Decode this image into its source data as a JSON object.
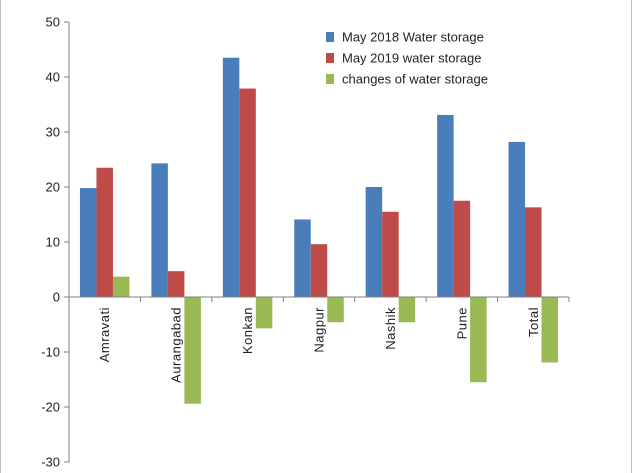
{
  "chart_data": {
    "type": "bar",
    "title": "",
    "xlabel": "",
    "ylabel": "",
    "ylim": [
      -30,
      50
    ],
    "yticks": [
      50,
      40,
      30,
      20,
      10,
      0,
      -10,
      -20,
      -30
    ],
    "grid": false,
    "legend_position": "top-right",
    "categories": [
      "Amravati",
      "Aurangabad",
      "Konkan",
      "Nagpur",
      "Nashik",
      "Pune",
      "Total"
    ],
    "series": [
      {
        "name": "May  2018 Water storage",
        "color": "#4a7ebb",
        "values": [
          19.8,
          24.3,
          43.5,
          14.1,
          20.0,
          33.1,
          28.2
        ]
      },
      {
        "name": "May 2019 water storage",
        "color": "#be4b48",
        "values": [
          23.5,
          4.7,
          37.9,
          9.6,
          15.5,
          17.5,
          16.3
        ]
      },
      {
        "name": "changes of water storage",
        "color": "#98b954",
        "values": [
          3.7,
          -19.4,
          -5.7,
          -4.6,
          -4.6,
          -15.5,
          -11.9
        ]
      }
    ]
  }
}
